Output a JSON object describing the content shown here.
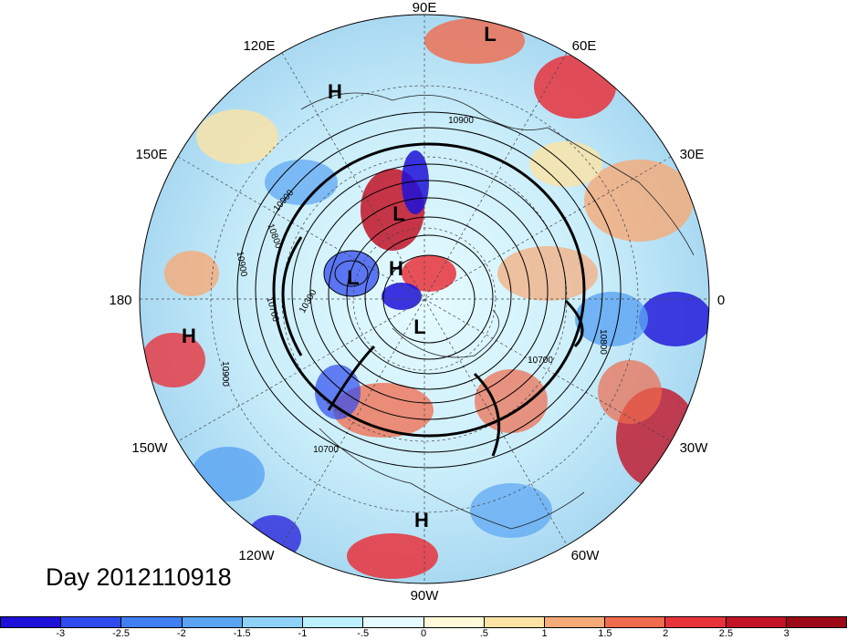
{
  "title": "Day 2012110918",
  "longitude_labels": [
    "90E",
    "60E",
    "30E",
    "0",
    "30W",
    "60W",
    "90W",
    "120W",
    "150W",
    "180",
    "150E",
    "120E"
  ],
  "pressure_centers": [
    "L",
    "H",
    "L",
    "L",
    "H",
    "L",
    "H",
    "H"
  ],
  "contour_labels": [
    "10900",
    "10900",
    "10900",
    "10900",
    "10800",
    "10800",
    "10700",
    "10700",
    "10700",
    "10300"
  ],
  "colorbar": {
    "ticks": [
      "-3",
      "-2.5",
      "-2",
      "-1.5",
      "-1",
      "-.5",
      "0",
      ".5",
      "1",
      "1.5",
      "2",
      "2.5",
      "3"
    ],
    "colors": [
      "#1c10d9",
      "#2f4bef",
      "#3f7ff2",
      "#5aa4f3",
      "#8ed2f7",
      "#bcefff",
      "#e6fbff",
      "#fff9d9",
      "#fde3a4",
      "#f6aa77",
      "#f06a4c",
      "#e8333c",
      "#c21327",
      "#9c0a18"
    ]
  }
}
